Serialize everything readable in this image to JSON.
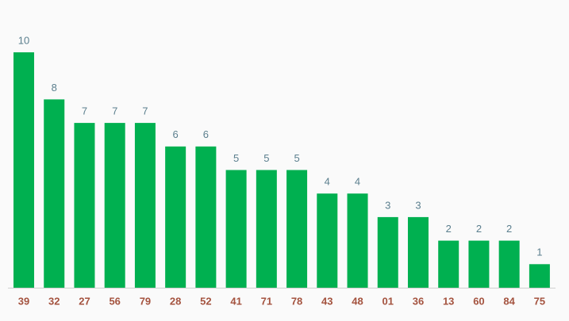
{
  "chart_data": {
    "type": "bar",
    "categories": [
      "39",
      "32",
      "27",
      "56",
      "79",
      "28",
      "52",
      "41",
      "71",
      "78",
      "43",
      "48",
      "01",
      "36",
      "13",
      "60",
      "84",
      "75"
    ],
    "values": [
      10,
      8,
      7,
      7,
      7,
      6,
      6,
      5,
      5,
      5,
      4,
      4,
      3,
      3,
      2,
      2,
      2,
      1
    ],
    "color": "#00b050"
  }
}
